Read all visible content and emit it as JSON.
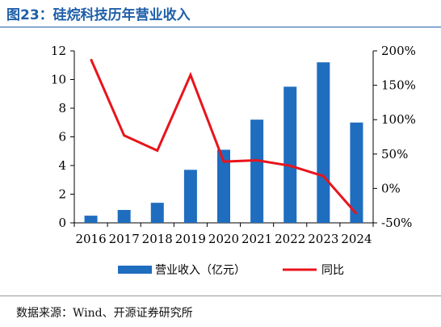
{
  "title": "图23：硅烷科技历年营业收入",
  "source": "数据来源：Wind、开源证券研究所",
  "colors": {
    "bar": "#1f6dbf",
    "line": "#e8141b",
    "title": "#1f5fa8",
    "axis": "#000000"
  },
  "chart_data": {
    "type": "bar+line",
    "categories": [
      "2016",
      "2017",
      "2018",
      "2019",
      "2020",
      "2021",
      "2022",
      "2023",
      "2024"
    ],
    "series": [
      {
        "name": "营业收入（亿元）",
        "type": "bar",
        "axis": "left",
        "values": [
          0.5,
          0.9,
          1.4,
          3.7,
          5.1,
          7.2,
          9.5,
          11.2,
          7.0
        ]
      },
      {
        "name": "同比",
        "type": "line",
        "axis": "right",
        "values": [
          188,
          77,
          55,
          165,
          39,
          41,
          33,
          18,
          -37
        ]
      }
    ],
    "y_left": {
      "min": 0,
      "max": 12,
      "ticks": [
        "0",
        "2",
        "4",
        "6",
        "8",
        "10",
        "12"
      ]
    },
    "y_right": {
      "min": -50,
      "max": 200,
      "ticks": [
        "-50%",
        "0%",
        "50%",
        "100%",
        "150%",
        "200%"
      ]
    },
    "legend_position": "bottom",
    "grid": false
  }
}
